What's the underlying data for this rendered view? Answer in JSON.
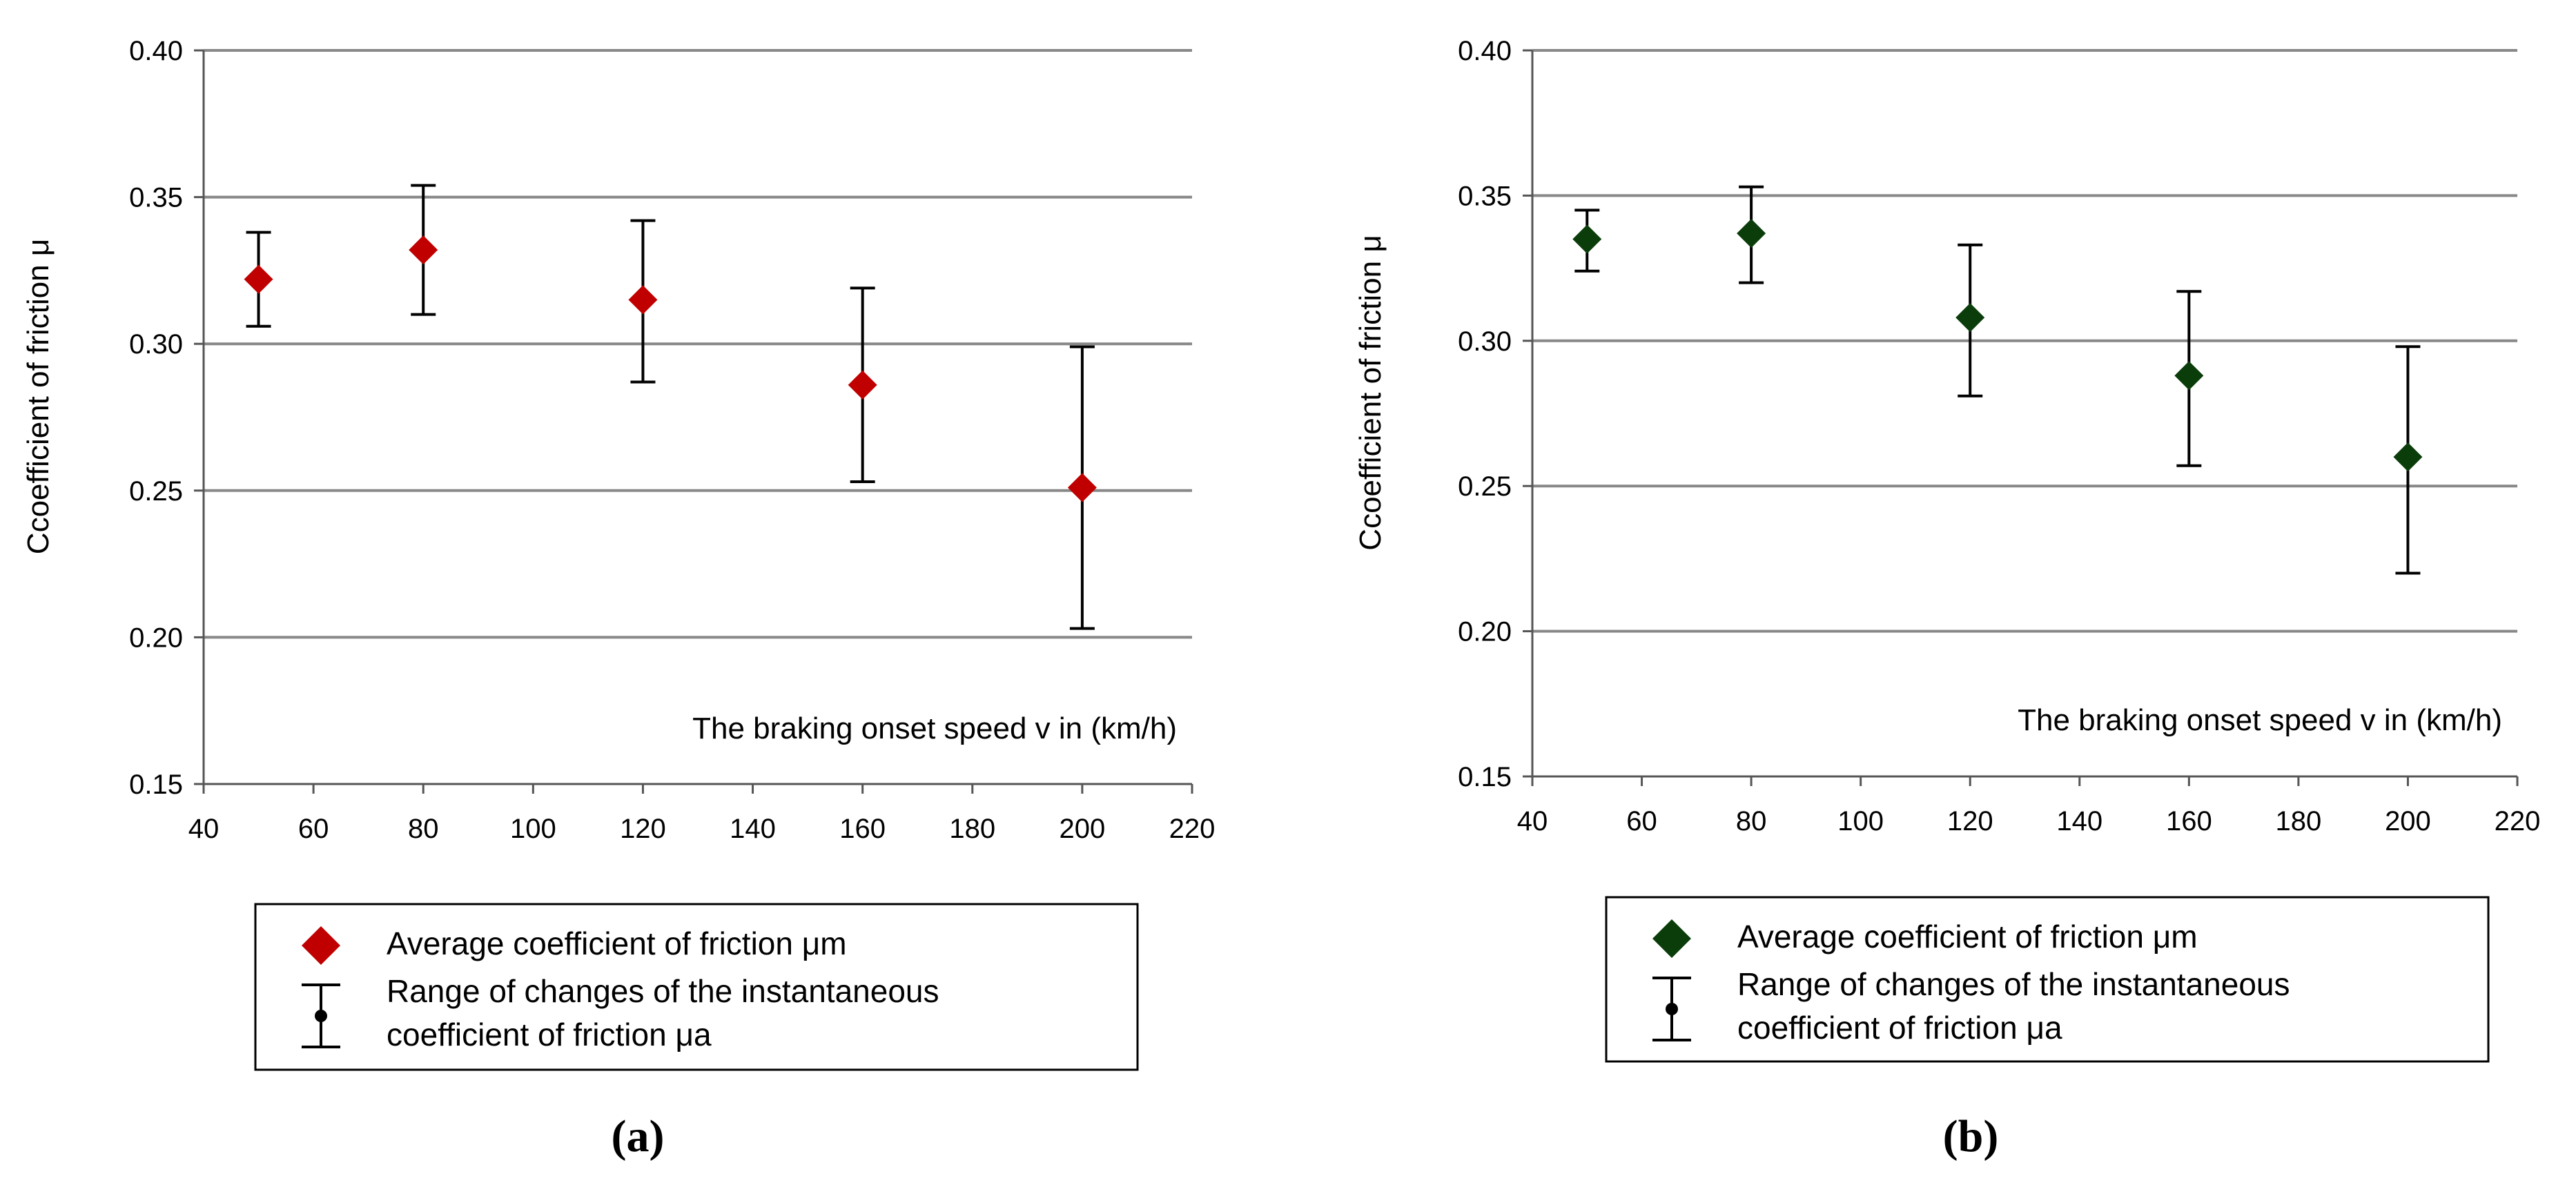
{
  "chart_data": [
    {
      "type": "scatter",
      "panel_label": "(a)",
      "title": "",
      "xlabel": "The braking onset speed v in (km/h)",
      "ylabel": "Ccoefficient of friction μ",
      "xlim": [
        40,
        220
      ],
      "ylim": [
        0.15,
        0.4
      ],
      "x_ticks": [
        "40",
        "60",
        "80",
        "100",
        "120",
        "140",
        "160",
        "180",
        "200",
        "220"
      ],
      "y_ticks": [
        "0.15",
        "0.20",
        "0.25",
        "0.30",
        "0.35",
        "0.40"
      ],
      "grid": true,
      "marker_color": "#c00000",
      "series": [
        {
          "name": "Average coefficient of friction μm",
          "x": [
            50,
            80,
            120,
            160,
            200
          ],
          "values": [
            0.322,
            0.332,
            0.315,
            0.286,
            0.251
          ]
        }
      ],
      "error_bars": {
        "name": "Range of changes of the instantaneous coefficient of friction μa",
        "upper": [
          0.338,
          0.354,
          0.342,
          0.319,
          0.299
        ],
        "lower": [
          0.306,
          0.31,
          0.287,
          0.253,
          0.203
        ]
      },
      "legend": {
        "item1": "Average coefficient of friction μm",
        "item2_line1": "Range of changes of the instantaneous",
        "item2_line2": "coefficient of friction μa",
        "placement": "bottom"
      }
    },
    {
      "type": "scatter",
      "panel_label": "(b)",
      "title": "",
      "xlabel": "The braking onset speed v in (km/h)",
      "ylabel": "Ccoefficient of friction μ",
      "xlim": [
        40,
        220
      ],
      "ylim": [
        0.15,
        0.4
      ],
      "x_ticks": [
        "40",
        "60",
        "80",
        "100",
        "120",
        "140",
        "160",
        "180",
        "200",
        "220"
      ],
      "y_ticks": [
        "0.15",
        "0.20",
        "0.25",
        "0.30",
        "0.35",
        "0.40"
      ],
      "grid": true,
      "marker_color": "#0b3d0b",
      "series": [
        {
          "name": "Average coefficient of friction μm",
          "x": [
            50,
            80,
            120,
            160,
            200
          ],
          "values": [
            0.335,
            0.337,
            0.308,
            0.288,
            0.26
          ]
        }
      ],
      "error_bars": {
        "name": "Range of changes of the instantaneous coefficient of friction μa",
        "upper": [
          0.345,
          0.353,
          0.333,
          0.317,
          0.298
        ],
        "lower": [
          0.324,
          0.32,
          0.281,
          0.257,
          0.22
        ]
      },
      "legend": {
        "item1": "Average coefficient of friction μm",
        "item2_line1": "Range of changes of the instantaneous",
        "item2_line2": "coefficient of friction μa",
        "placement": "bottom"
      }
    }
  ]
}
